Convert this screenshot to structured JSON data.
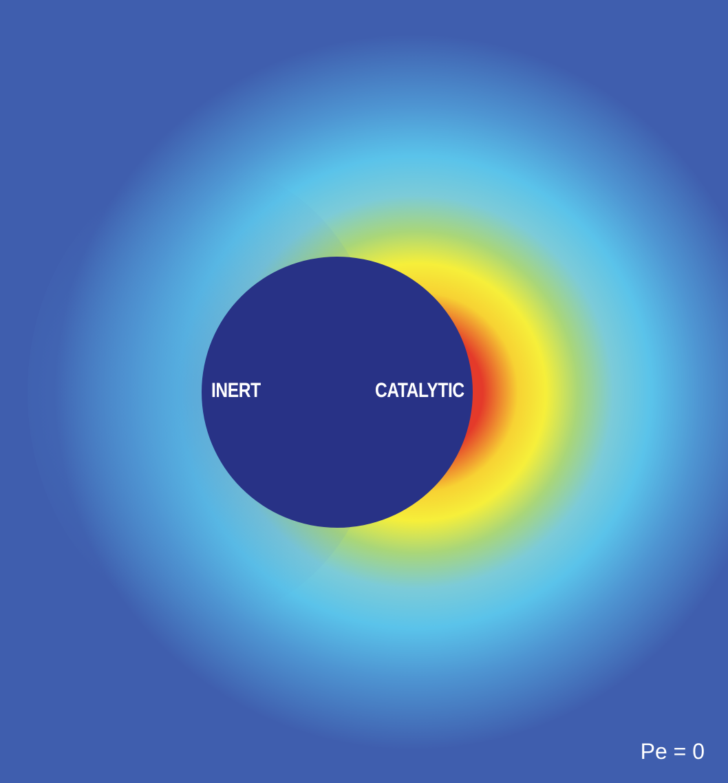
{
  "labels": {
    "inert": "INERT",
    "catalytic": "CATALYTIC",
    "peclet": "Pe = 0"
  },
  "colors": {
    "particle": "#283286",
    "background_far": "#3f5eae",
    "cyan": "#5ac3ea",
    "yellow": "#f6ef3a",
    "red": "#e2382a"
  }
}
